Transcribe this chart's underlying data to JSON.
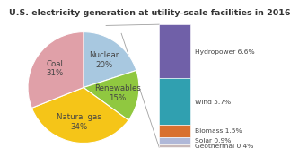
{
  "title": "U.S. electricity generation at utility-scale facilities in 2016",
  "slices": [
    {
      "label": "Nuclear\n20%",
      "value": 20,
      "color": "#a8c8e0"
    },
    {
      "label": "Renewables\n15%",
      "value": 15,
      "color": "#90c840"
    },
    {
      "label": "Natural gas\n34%",
      "value": 34,
      "color": "#f5c518"
    },
    {
      "label": "Coal\n31%",
      "value": 31,
      "color": "#e0a0a8"
    }
  ],
  "legend_items": [
    {
      "label": "Hydropower 6.6%",
      "color": "#7060a8",
      "pct": 6.6
    },
    {
      "label": "Wind 5.7%",
      "color": "#30a0b0",
      "pct": 5.7
    },
    {
      "label": "Biomass 1.5%",
      "color": "#d87030",
      "pct": 1.5
    },
    {
      "label": "Solar 0.9%",
      "color": "#b0b8d8",
      "pct": 0.9
    },
    {
      "label": "Geothermal 0.4%",
      "color": "#c8b8b8",
      "pct": 0.4
    }
  ],
  "line_color": "#a0a0a0",
  "background_color": "#ffffff",
  "title_fontsize": 6.8,
  "label_fontsize": 6.2
}
